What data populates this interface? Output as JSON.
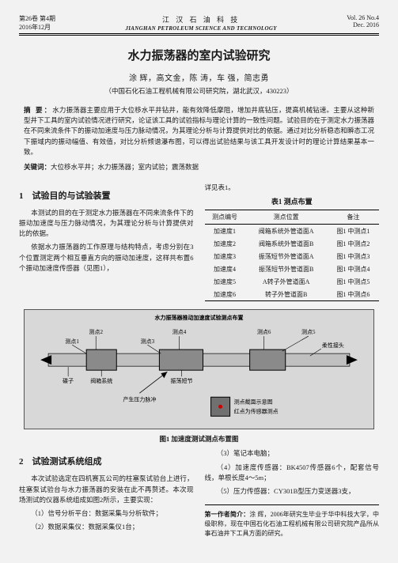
{
  "header": {
    "vol_issue_cn": "第26卷 第4期",
    "date_cn": "2016年12月",
    "journal_cn": "江 汉 石 油 科 技",
    "journal_en": "JIANGHAN PETROLEUM SCIENCE AND TECHNOLOGY",
    "vol_issue_en": "Vol. 26  No.4",
    "date_en": "Dec. 2016"
  },
  "title": "水力振荡器的室内试验研究",
  "authors": "涂 辉，高文金，陈 涛，车 强，简志勇",
  "affil": "（中国石化石油工程机械有限公司研究院，湖北武汉，430223）",
  "abstract": {
    "lead": "摘 要：",
    "text": "水力振荡器主要应用于大位移水平井钻井，能有效降低摩阻，增加井底钻压，提高机械钻速。主要从这种新型井下工具的室内试验情况进行研究，论证该工具的试验指标与理论计算的一致性问题。试验目的在于测定水力振荡器在不同来流条件下的振动加速度与压力脉动情况，为其理论分析与计算提供对比的依据。通过对比分析稳态和瞬态工况下振域内的振动幅值、有效值，对比分析频谱瀑布图，可以得出试验结果与该工具开发设计时的理论计算结果基本一致。"
  },
  "keywords": {
    "lead": "关键词：",
    "text": "大位移水平井；水力振荡器；室内试验；震荡数据"
  },
  "sections": {
    "s1_title": "1　试验目的与试验装置",
    "s1_p1": "本测试的目的在于测定水力振荡器在不同来流条件下的振动加速度与压力脉动情况，为其理论分析与计算提供对比的依据。",
    "s1_p2": "依据水力振荡器的工作原理与结构特点，考虑分别在3个位置测定两个相互垂直方向的振动加速度，这样共布置6个振动加速度传感器（见图1），",
    "s1_right_intro": "详见表1。",
    "s2_title": "2　试验测试系统组成",
    "s2_p1": "本次试验选定在四机赛瓦公司的柱塞泵试验台上进行，柱塞泵试验台与水力振荡器的安装在此不再赘述。本次现场测试的仪器系统组成如图2所示，主要实现：",
    "s2_li1": "（1）信号分析平台：数据采集与分析软件；",
    "s2_li2": "（2）数据采集仪：数据采集仪1台；",
    "s2_li3": "（3）笔记本电脑；",
    "s2_li4": "（4）加速度传感器：BK4507传感器6个，配套信号线，单根长度4～5m；",
    "s2_li5": "（5）压力传感器：CY301B型压力变送器3支，"
  },
  "table1": {
    "title": "表1 测点布置",
    "cols": [
      "测点编号",
      "测点位置",
      "备注"
    ],
    "rows": [
      [
        "加速度1",
        "阀箱系统外管道面A",
        "图1 中测点1"
      ],
      [
        "加速度2",
        "阀箱系统外管道面B",
        "图1 中测点2"
      ],
      [
        "加速度3",
        "振荡短节外管道面A",
        "图1 中测点3"
      ],
      [
        "加速度4",
        "振荡短节外管道面B",
        "图1 中测点4"
      ],
      [
        "加速度5",
        "A转子外管道面A",
        "图1 中测点5"
      ],
      [
        "加速度6",
        "转子外管道面B",
        "图1 中测点6"
      ]
    ]
  },
  "fig1": {
    "title": "图1 加速度测试测点布置图",
    "top_title": "水力振荡器推动加速度试验测点布置",
    "labels": {
      "l1": "测点1",
      "l2": "测点2",
      "l3": "测点3",
      "l4": "测点4",
      "l5": "测点5",
      "l6": "测点6",
      "hub": "碟子",
      "valve": "阀箱系统",
      "osc": "振荡短节",
      "flex": "柔性接头",
      "pressure": "产生压力脉冲",
      "legend1": "测点截面示意图",
      "legend2": "红点为传感器测点"
    },
    "colors": {
      "bg": "#d8d8d8",
      "line": "#000000",
      "fill_dark": "#8a8a8a",
      "fill_light": "#c0c0c0",
      "arrow": "#000000",
      "legend_box": "#707070"
    }
  },
  "author_bio": {
    "lead": "第一作者简介：",
    "text": "涂 辉，2006年研究生毕业于华中科技大学，中级职称，现在中国石化石油工程机械有限公司研究院产品所从事石油井下工具方面的研究。"
  }
}
